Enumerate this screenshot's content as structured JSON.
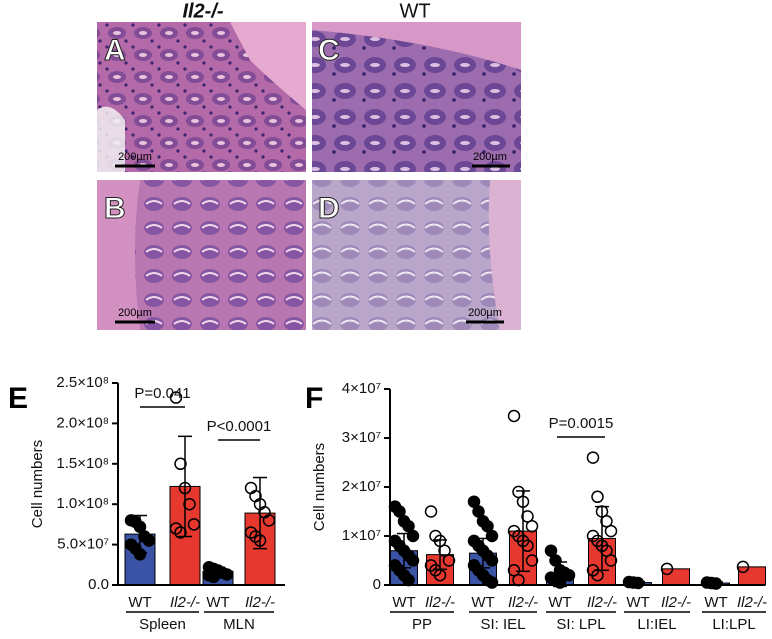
{
  "panels": {
    "header_left": "Il2-/-",
    "header_right": "WT",
    "images": [
      {
        "label": "A",
        "scale": "200µm"
      },
      {
        "label": "C",
        "scale": "200µm"
      },
      {
        "label": "B",
        "scale": "200µm"
      },
      {
        "label": "D",
        "scale": "200µm"
      }
    ]
  },
  "chart_data": [
    {
      "type": "bar",
      "panel": "E",
      "ylabel": "Cell numbers",
      "categories": [
        "WT",
        "Il2-/-",
        "WT",
        "Il2-/-"
      ],
      "groups": [
        "Spleen",
        "MLN"
      ],
      "values": [
        63000000,
        122000000,
        17000000,
        89000000
      ],
      "errors": [
        23000000,
        62000000,
        5000000,
        44000000
      ],
      "colors": [
        "#3a53a4",
        "#e6382f",
        "#3a53a4",
        "#e6382f"
      ],
      "points": [
        [
          80000000,
          78000000,
          72000000,
          60000000,
          55000000,
          50000000,
          45000000,
          38000000
        ],
        [
          232000000,
          150000000,
          120000000,
          100000000,
          75000000,
          70000000,
          65000000
        ],
        [
          22000000,
          20000000,
          18000000,
          15000000,
          13000000,
          12000000,
          10000000
        ],
        [
          120000000,
          110000000,
          100000000,
          90000000,
          80000000,
          65000000,
          60000000,
          55000000
        ]
      ],
      "annotations": [
        "P=0.041",
        "P<0.0001"
      ],
      "ylim": [
        0,
        250000000
      ],
      "yticks": [
        {
          "value": 0,
          "label": "0.0"
        },
        {
          "value": 50000000,
          "label": "5.0×10⁷"
        },
        {
          "value": 100000000,
          "label": "1.0×10⁸"
        },
        {
          "value": 150000000,
          "label": "1.5×10⁸"
        },
        {
          "value": 200000000,
          "label": "2.0×10⁸"
        },
        {
          "value": 250000000,
          "label": "2.5×10⁸"
        }
      ]
    },
    {
      "type": "bar",
      "panel": "F",
      "ylabel": "Cell numbers",
      "categories": [
        "WT",
        "Il2-/-",
        "WT",
        "Il2-/-",
        "WT",
        "Il2-/-",
        "WT",
        "Il2-/-",
        "WT",
        "Il2-/-"
      ],
      "groups": [
        "PP",
        "SI: IEL",
        "SI: LPL",
        "LI:IEL",
        "LI:LPL"
      ],
      "values": [
        7000000,
        6200000,
        6500000,
        11000000,
        2200000,
        9500000,
        500000,
        3300000,
        400000,
        3700000
      ],
      "errors": [
        3500000,
        3000000,
        3000000,
        8200000,
        2500000,
        6500000,
        200000,
        null,
        200000,
        null
      ],
      "colors": [
        "#3a53a4",
        "#e6382f",
        "#3a53a4",
        "#e6382f",
        "#3a53a4",
        "#e6382f",
        "#3a53a4",
        "#e6382f",
        "#3a53a4",
        "#e6382f"
      ],
      "points": [
        [
          16000000,
          15000000,
          13000000,
          12000000,
          10000000,
          9000000,
          8000000,
          7000000,
          6000000,
          5000000,
          4000000,
          3000000,
          2000000,
          1000000
        ],
        [
          15000000,
          10000000,
          9000000,
          7000000,
          5000000,
          4000000,
          3000000,
          2000000
        ],
        [
          17000000,
          15000000,
          13000000,
          12000000,
          10000000,
          9000000,
          8000000,
          7000000,
          6000000,
          5000000,
          4000000,
          3000000,
          2000000,
          1000000,
          500000
        ],
        [
          34500000,
          19000000,
          17000000,
          14000000,
          12000000,
          11000000,
          10000000,
          9000000,
          8000000,
          5000000,
          3000000,
          1000000
        ],
        [
          7000000,
          5000000,
          3000000,
          2500000,
          2000000,
          1500000,
          1000000,
          500000
        ],
        [
          26000000,
          18000000,
          15000000,
          13000000,
          11000000,
          10000000,
          9000000,
          8000000,
          7000000,
          5000000,
          3000000,
          2000000
        ],
        [
          600000,
          500000,
          400000
        ],
        [
          3300000
        ],
        [
          500000,
          400000,
          300000
        ],
        [
          3700000
        ]
      ],
      "annotations": [
        "P=0.0015"
      ],
      "ylim": [
        0,
        40000000
      ],
      "yticks": [
        0,
        {
          "value": 10000000,
          "label": "1×10⁷"
        },
        {
          "value": 20000000,
          "label": "2×10⁷"
        },
        {
          "value": 30000000,
          "label": "3×10⁷"
        },
        {
          "value": 40000000,
          "label": "4×10⁷"
        }
      ]
    }
  ]
}
